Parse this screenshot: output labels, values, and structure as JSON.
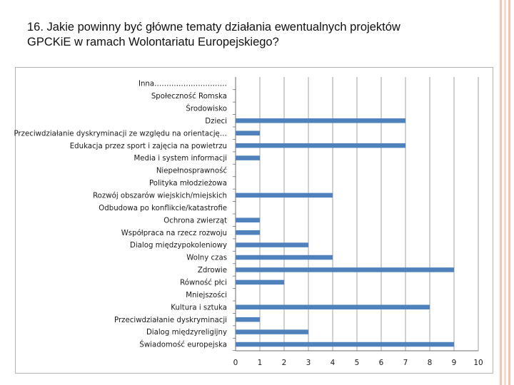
{
  "slide": {
    "title_line1": "16. Jakie powinny być główne tematy działania ewentualnych projektów",
    "title_line2": "GPCKiE w ramach Wolontariatu Europejskiego?",
    "border_colors": [
      "#f2c4b4",
      "#f7d9ce",
      "#f2c4b4"
    ]
  },
  "chart_data": {
    "type": "bar",
    "orientation": "horizontal",
    "categories": [
      "Inna…………………………",
      "Społeczność Romska",
      "Środowisko",
      "Dzieci",
      "Przeciwdziałanie dyskryminacji ze względu na orientację…",
      "Edukacja przez sport i zajęcia na powietrzu",
      "Media i system informacji",
      "Niepełnosprawność",
      "Polityka młodzieżowa",
      "Rozwój obszarów wiejskich/miejskich",
      "Odbudowa po konflikcie/katastrofie",
      "Ochrona zwierząt",
      "Współpraca na rzecz rozwoju",
      "Dialog międzypokoleniowy",
      "Wolny czas",
      "Zdrowie",
      "Równość płci",
      "Mniejszości",
      "Kultura i sztuka",
      "Przeciwdziałanie dyskryminacji",
      "Dialog międzyreligijny",
      "Świadomość europejska"
    ],
    "values": [
      0,
      0,
      0,
      7,
      1,
      7,
      1,
      0,
      0,
      4,
      0,
      1,
      1,
      3,
      4,
      9,
      2,
      0,
      8,
      1,
      3,
      9
    ],
    "xlim": [
      0,
      10
    ],
    "xticks": [
      "0",
      "1",
      "2",
      "3",
      "4",
      "5",
      "6",
      "7",
      "8",
      "9",
      "10"
    ],
    "grid": true,
    "bar_color": "#4f81bd",
    "grid_color": "#8c8c8c"
  }
}
